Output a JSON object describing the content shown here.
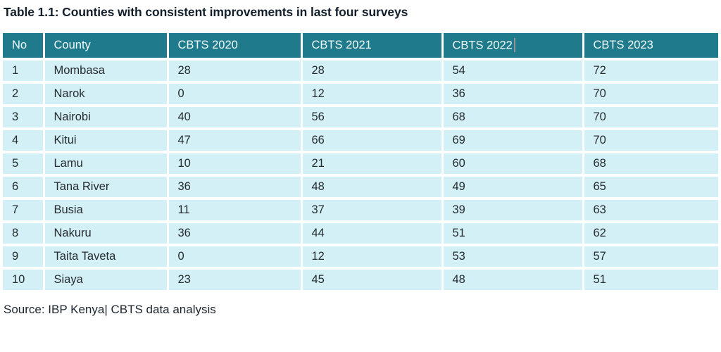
{
  "title": "Table 1.1: Counties with consistent improvements in last four surveys",
  "source": "Source: IBP Kenya| CBTS data analysis",
  "caret": {
    "visible_after_column": "CBTS 2022"
  },
  "colors": {
    "header_bg": "#1f7b8c",
    "header_text": "#f1fafc",
    "row_bg": "#d2f0f6",
    "body_text": "#262c30",
    "caret": "#8f9598"
  },
  "table": {
    "columns": [
      "No",
      "County",
      "CBTS 2020",
      "CBTS 2021",
      "CBTS 2022",
      "CBTS 2023"
    ],
    "rows": [
      [
        "1",
        "Mombasa",
        "28",
        "28",
        "54",
        "72"
      ],
      [
        "2",
        "Narok",
        "0",
        "12",
        "36",
        "70"
      ],
      [
        "3",
        "Nairobi",
        "40",
        "56",
        "68",
        "70"
      ],
      [
        "4",
        "Kitui",
        "47",
        "66",
        "69",
        "70"
      ],
      [
        "5",
        "Lamu",
        "10",
        "21",
        "60",
        "68"
      ],
      [
        "6",
        "Tana River",
        "36",
        "48",
        "49",
        "65"
      ],
      [
        "7",
        "Busia",
        "11",
        "37",
        "39",
        "63"
      ],
      [
        "8",
        "Nakuru",
        "36",
        "44",
        "51",
        "62"
      ],
      [
        "9",
        "Taita Taveta",
        "0",
        "12",
        "53",
        "57"
      ],
      [
        "10",
        "Siaya",
        "23",
        "45",
        "48",
        "51"
      ]
    ]
  },
  "chart_data": {
    "type": "table",
    "title": "Table 1.1: Counties with consistent improvements in last four surveys",
    "categories": [
      "Mombasa",
      "Narok",
      "Nairobi",
      "Kitui",
      "Lamu",
      "Tana River",
      "Busia",
      "Nakuru",
      "Taita Taveta",
      "Siaya"
    ],
    "series": [
      {
        "name": "CBTS 2020",
        "values": [
          28,
          0,
          40,
          47,
          10,
          36,
          11,
          36,
          0,
          23
        ]
      },
      {
        "name": "CBTS 2021",
        "values": [
          28,
          12,
          56,
          66,
          21,
          48,
          37,
          44,
          12,
          45
        ]
      },
      {
        "name": "CBTS 2022",
        "values": [
          54,
          36,
          68,
          69,
          60,
          49,
          39,
          51,
          53,
          48
        ]
      },
      {
        "name": "CBTS 2023",
        "values": [
          72,
          70,
          70,
          70,
          68,
          65,
          63,
          62,
          57,
          51
        ]
      }
    ]
  }
}
